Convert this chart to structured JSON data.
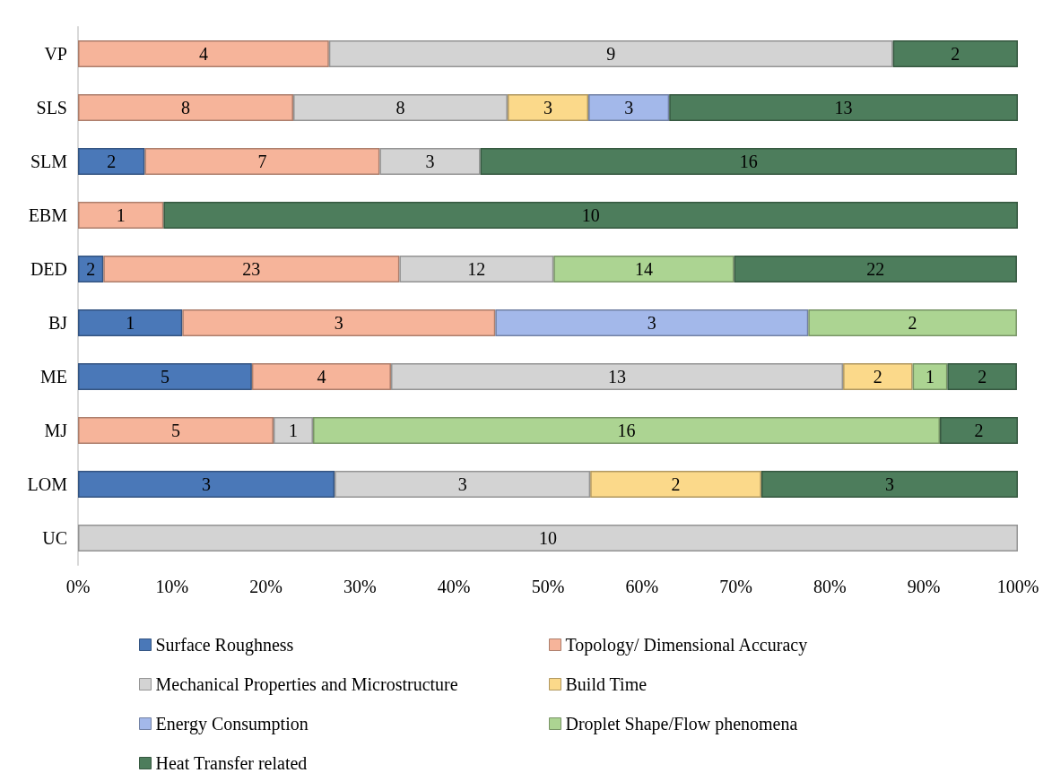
{
  "chart_data": {
    "type": "bar",
    "orientation": "horizontal",
    "stacked": true,
    "legend": "bottom",
    "grid": false,
    "categories": [
      "VP",
      "SLS",
      "SLM",
      "EBM",
      "DED",
      "BJ",
      "ME",
      "MJ",
      "LOM",
      "UC"
    ],
    "xlim": [
      0,
      100
    ],
    "xticks": [
      {
        "value": 0,
        "label": "0%"
      },
      {
        "value": 10,
        "label": "10%"
      },
      {
        "value": 20,
        "label": "20%"
      },
      {
        "value": 30,
        "label": "30%"
      },
      {
        "value": 40,
        "label": "40%"
      },
      {
        "value": 50,
        "label": "50%"
      },
      {
        "value": 60,
        "label": "60%"
      },
      {
        "value": 70,
        "label": "70%"
      },
      {
        "value": 80,
        "label": "80%"
      },
      {
        "value": 90,
        "label": "90%"
      },
      {
        "value": 100,
        "label": "100%"
      }
    ],
    "annotations": [
      "4",
      "9",
      "2",
      "8",
      "8",
      "3",
      "3",
      "13",
      "2",
      "7",
      "3",
      "16",
      "1",
      "10",
      "2",
      "23",
      "12",
      "14",
      "22",
      "1",
      "3",
      "3",
      "2",
      "5",
      "4",
      "13",
      "2",
      "1",
      "2",
      "5",
      "1",
      "16",
      "2",
      "3",
      "3",
      "2",
      "3",
      "10"
    ],
    "series": [
      {
        "name": "Surface Roughness",
        "color": "#4a78b8",
        "values": [
          null,
          null,
          7.1,
          null,
          2.7,
          11.1,
          18.5,
          null,
          27.3,
          null
        ]
      },
      {
        "name": "Topology/ Dimensional Accuracy",
        "color": "#f6b49a",
        "values": [
          26.7,
          22.9,
          25,
          9.1,
          31.5,
          33.3,
          14.8,
          20.8,
          null,
          null
        ]
      },
      {
        "name": "Mechanical Properties and Microstructure",
        "color": "#d3d3d3",
        "values": [
          60,
          22.8,
          10.7,
          null,
          16.4,
          null,
          48.1,
          4.2,
          27.2,
          100
        ]
      },
      {
        "name": "Build Time",
        "color": "#fbd98a",
        "values": [
          null,
          8.6,
          null,
          null,
          null,
          null,
          7.4,
          null,
          18.2,
          null
        ]
      },
      {
        "name": "Energy Consumption",
        "color": "#a3b8ea",
        "values": [
          null,
          8.6,
          null,
          null,
          null,
          33.3,
          null,
          null,
          null,
          null
        ]
      },
      {
        "name": "Droplet Shape/Flow phenomena",
        "color": "#acd492",
        "values": [
          null,
          null,
          null,
          null,
          19.2,
          22.2,
          3.7,
          66.7,
          null,
          null
        ]
      },
      {
        "name": "Heat Transfer related",
        "color": "#4d7d5c",
        "values": [
          13.3,
          37.1,
          57.1,
          90.9,
          30.1,
          null,
          7.4,
          8.3,
          27.3,
          null
        ]
      }
    ]
  }
}
